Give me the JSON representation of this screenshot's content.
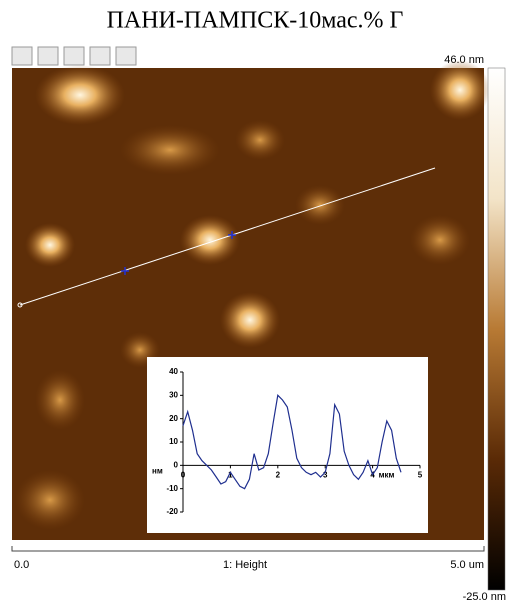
{
  "title": "ПАНИ-ПАМПСК-10мас.% Г",
  "image": {
    "scale_max": "46.0 nm",
    "scale_min": "-25.0 nm",
    "x_start": "0.0",
    "channel": "1: Height",
    "x_end": "5.0 um"
  },
  "chart_data": {
    "type": "line",
    "xlabel": "мкм",
    "ylabel": "нм",
    "x": [
      0,
      0.1,
      0.2,
      0.3,
      0.4,
      0.5,
      0.6,
      0.7,
      0.8,
      0.9,
      1.0,
      1.1,
      1.2,
      1.3,
      1.4,
      1.5,
      1.6,
      1.7,
      1.8,
      1.9,
      2.0,
      2.1,
      2.2,
      2.3,
      2.4,
      2.5,
      2.6,
      2.7,
      2.8,
      2.9,
      3.0,
      3.1,
      3.2,
      3.3,
      3.4,
      3.5,
      3.6,
      3.7,
      3.8,
      3.9,
      4.0,
      4.1,
      4.2,
      4.3,
      4.4,
      4.5,
      4.6
    ],
    "values": [
      17,
      23,
      15,
      5,
      2,
      0,
      -2,
      -5,
      -8,
      -7,
      -3,
      -6,
      -9,
      -10,
      -6,
      5,
      -2,
      -1,
      5,
      18,
      30,
      28,
      25,
      15,
      3,
      -1,
      -3,
      -4,
      -3,
      -5,
      -3,
      5,
      26,
      22,
      6,
      0,
      -4,
      -6,
      -3,
      2,
      -4,
      -1,
      10,
      19,
      15,
      3,
      -3
    ],
    "color": "#1f2f8f",
    "xlim": [
      0,
      5
    ],
    "ylim": [
      -20,
      40
    ],
    "xticks": [
      0,
      1,
      2,
      3,
      4,
      5
    ],
    "yticks": [
      -20,
      -10,
      0,
      10,
      20,
      30,
      40
    ]
  }
}
